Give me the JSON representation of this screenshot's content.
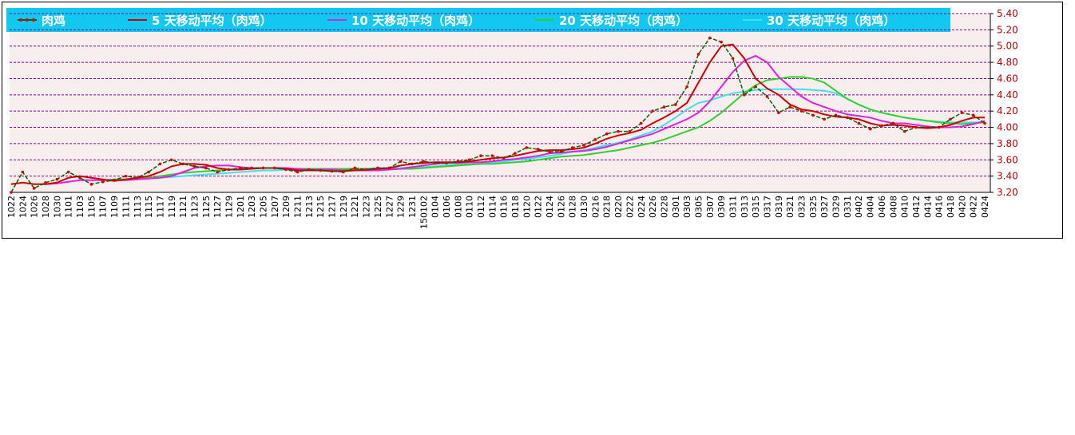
{
  "chart_data": {
    "type": "line",
    "categories": [
      "1022",
      "1024",
      "1026",
      "1028",
      "1030",
      "1101",
      "1103",
      "1105",
      "1107",
      "1109",
      "1111",
      "1113",
      "1115",
      "1117",
      "1119",
      "1121",
      "1123",
      "1125",
      "1127",
      "1129",
      "1201",
      "1203",
      "1205",
      "1207",
      "1209",
      "1211",
      "1213",
      "1215",
      "1217",
      "1219",
      "1221",
      "1223",
      "1225",
      "1227",
      "1229",
      "1231",
      "150102",
      "0104",
      "0106",
      "0108",
      "0110",
      "0112",
      "0114",
      "0116",
      "0118",
      "0120",
      "0122",
      "0124",
      "0126",
      "0128",
      "0130",
      "0216",
      "0218",
      "0220",
      "0222",
      "0224",
      "0226",
      "0228",
      "0301",
      "0303",
      "0305",
      "0307",
      "0309",
      "0311",
      "0313",
      "0315",
      "0317",
      "0319",
      "0321",
      "0323",
      "0325",
      "0327",
      "0329",
      "0331",
      "0402",
      "0404",
      "0406",
      "0408",
      "0410",
      "0412",
      "0414",
      "0416",
      "0418",
      "0420",
      "0422",
      "0424"
    ],
    "series": [
      {
        "name": "肉鸡",
        "color": "#006400",
        "marker_color": "#e00000",
        "values": [
          3.2,
          3.45,
          3.25,
          3.32,
          3.36,
          3.45,
          3.38,
          3.3,
          3.33,
          3.35,
          3.4,
          3.38,
          3.45,
          3.55,
          3.6,
          3.55,
          3.52,
          3.5,
          3.45,
          3.48,
          3.5,
          3.5,
          3.5,
          3.5,
          3.48,
          3.45,
          3.48,
          3.47,
          3.46,
          3.45,
          3.5,
          3.48,
          3.5,
          3.5,
          3.58,
          3.55,
          3.58,
          3.56,
          3.56,
          3.58,
          3.6,
          3.65,
          3.65,
          3.62,
          3.68,
          3.75,
          3.73,
          3.7,
          3.7,
          3.75,
          3.78,
          3.85,
          3.92,
          3.95,
          3.95,
          4.05,
          4.2,
          4.25,
          4.28,
          4.5,
          4.9,
          5.1,
          5.05,
          4.85,
          4.4,
          4.5,
          4.38,
          4.18,
          4.25,
          4.2,
          4.15,
          4.1,
          4.15,
          4.12,
          4.05,
          3.98,
          4.02,
          4.05,
          3.95,
          4.0,
          4.0,
          4.0,
          4.1,
          4.18,
          4.15,
          4.05
        ]
      },
      {
        "name": "5 天移动平均（肉鸡）",
        "color": "#d00000",
        "values": [
          3.3,
          3.32,
          3.3,
          3.3,
          3.32,
          3.38,
          3.4,
          3.38,
          3.36,
          3.34,
          3.36,
          3.38,
          3.4,
          3.45,
          3.52,
          3.55,
          3.55,
          3.54,
          3.5,
          3.48,
          3.48,
          3.49,
          3.5,
          3.5,
          3.49,
          3.47,
          3.47,
          3.47,
          3.46,
          3.46,
          3.47,
          3.48,
          3.49,
          3.5,
          3.53,
          3.55,
          3.56,
          3.57,
          3.57,
          3.57,
          3.58,
          3.6,
          3.62,
          3.63,
          3.65,
          3.68,
          3.71,
          3.72,
          3.72,
          3.73,
          3.75,
          3.8,
          3.86,
          3.9,
          3.93,
          3.97,
          4.05,
          4.12,
          4.2,
          4.3,
          4.55,
          4.8,
          5.0,
          5.02,
          4.85,
          4.6,
          4.48,
          4.4,
          4.28,
          4.22,
          4.2,
          4.16,
          4.13,
          4.12,
          4.1,
          4.05,
          4.02,
          4.03,
          4.02,
          4.0,
          3.99,
          4.0,
          4.03,
          4.08,
          4.12,
          4.12
        ]
      },
      {
        "name": "10 天移动平均（肉鸡）",
        "color": "#e020e0",
        "values": [
          null,
          null,
          null,
          3.3,
          3.31,
          3.33,
          3.35,
          3.35,
          3.35,
          3.35,
          3.35,
          3.36,
          3.37,
          3.38,
          3.4,
          3.45,
          3.5,
          3.52,
          3.53,
          3.53,
          3.51,
          3.5,
          3.5,
          3.5,
          3.5,
          3.49,
          3.48,
          3.48,
          3.48,
          3.47,
          3.47,
          3.47,
          3.47,
          3.48,
          3.49,
          3.51,
          3.53,
          3.55,
          3.56,
          3.56,
          3.57,
          3.57,
          3.58,
          3.6,
          3.61,
          3.63,
          3.65,
          3.68,
          3.69,
          3.7,
          3.71,
          3.73,
          3.76,
          3.8,
          3.84,
          3.88,
          3.92,
          3.98,
          4.04,
          4.1,
          4.18,
          4.32,
          4.5,
          4.68,
          4.82,
          4.88,
          4.8,
          4.62,
          4.5,
          4.38,
          4.3,
          4.25,
          4.2,
          4.16,
          4.14,
          4.12,
          4.08,
          4.05,
          4.05,
          4.03,
          4.01,
          4.0,
          4.0,
          4.01,
          4.04,
          4.08
        ]
      },
      {
        "name": "20 天移动平均（肉鸡）",
        "color": "#30d030",
        "values": [
          null,
          null,
          null,
          null,
          null,
          null,
          null,
          null,
          3.35,
          3.36,
          3.36,
          3.37,
          3.38,
          3.4,
          3.42,
          3.44,
          3.45,
          3.46,
          3.47,
          3.48,
          3.49,
          3.5,
          3.5,
          3.5,
          3.49,
          3.49,
          3.49,
          3.49,
          3.49,
          3.49,
          3.49,
          3.49,
          3.49,
          3.49,
          3.49,
          3.49,
          3.5,
          3.51,
          3.52,
          3.53,
          3.54,
          3.55,
          3.55,
          3.56,
          3.57,
          3.58,
          3.6,
          3.62,
          3.64,
          3.65,
          3.66,
          3.68,
          3.7,
          3.72,
          3.75,
          3.78,
          3.81,
          3.85,
          3.9,
          3.95,
          4.0,
          4.08,
          4.18,
          4.3,
          4.42,
          4.52,
          4.58,
          4.6,
          4.62,
          4.62,
          4.6,
          4.55,
          4.45,
          4.35,
          4.28,
          4.22,
          4.18,
          4.15,
          4.12,
          4.1,
          4.08,
          4.06,
          4.05,
          4.04,
          4.05,
          4.06
        ]
      },
      {
        "name": "30 天移动平均（肉鸡）",
        "color": "#40e0f0",
        "values": [
          null,
          null,
          null,
          null,
          null,
          null,
          null,
          null,
          null,
          null,
          null,
          null,
          null,
          3.38,
          3.39,
          3.4,
          3.41,
          3.42,
          3.43,
          3.44,
          3.45,
          3.46,
          3.47,
          3.47,
          3.48,
          3.48,
          3.49,
          3.49,
          3.49,
          3.49,
          3.49,
          3.49,
          3.5,
          3.5,
          3.5,
          3.51,
          3.51,
          3.52,
          3.53,
          3.54,
          3.55,
          3.56,
          3.57,
          3.58,
          3.6,
          3.61,
          3.63,
          3.65,
          3.67,
          3.7,
          3.72,
          3.75,
          3.78,
          3.81,
          3.85,
          3.9,
          3.95,
          4.03,
          4.12,
          4.22,
          4.3,
          4.33,
          4.38,
          4.42,
          4.44,
          4.46,
          4.47,
          4.47,
          4.47,
          4.47,
          4.46,
          4.45,
          4.42,
          4.35,
          4.28,
          4.22,
          4.18,
          4.15,
          4.12,
          4.1,
          4.08,
          4.07,
          4.06,
          4.06,
          4.06,
          4.06
        ]
      }
    ],
    "ylim": [
      3.2,
      5.4
    ],
    "yticks": [
      {
        "value": 3.2,
        "label": "3.20"
      },
      {
        "value": 3.4,
        "label": "3.40"
      },
      {
        "value": 3.6,
        "label": "3.60"
      },
      {
        "value": 3.8,
        "label": "3.80"
      },
      {
        "value": 4.0,
        "label": "4.00"
      },
      {
        "value": 4.2,
        "label": "4.20"
      },
      {
        "value": 4.4,
        "label": "4.40"
      },
      {
        "value": 4.6,
        "label": "4.60"
      },
      {
        "value": 4.8,
        "label": "4.80"
      },
      {
        "value": 5.0,
        "label": "5.00"
      },
      {
        "value": 5.2,
        "label": "5.20"
      },
      {
        "value": 5.4,
        "label": "5.40"
      }
    ],
    "grid": true,
    "legend": "top"
  }
}
